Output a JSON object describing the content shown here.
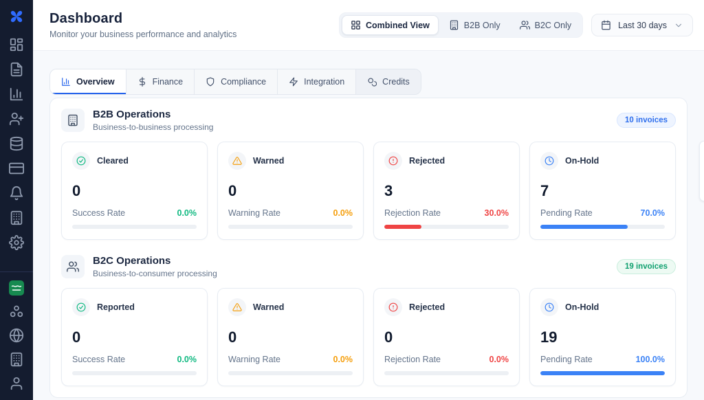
{
  "brand": {
    "logo_color": "#2f6bff",
    "flag_color": "#178a50"
  },
  "sidebar": {
    "top_icons": [
      "layout-dashboard",
      "file-text",
      "bar-chart",
      "user-plus",
      "database",
      "credit-card",
      "bell",
      "building",
      "settings"
    ],
    "bottom_icons": [
      "webhook",
      "globe",
      "building",
      "user"
    ]
  },
  "header": {
    "title": "Dashboard",
    "subtitle": "Monitor your business performance and analytics",
    "view_toggle": [
      {
        "label": "Combined View",
        "icon": "layout-grid",
        "active": true
      },
      {
        "label": "B2B Only",
        "icon": "building",
        "active": false
      },
      {
        "label": "B2C Only",
        "icon": "users",
        "active": false
      }
    ],
    "date_range": {
      "label": "Last 30 days",
      "icon": "calendar"
    }
  },
  "tabs": [
    {
      "label": "Overview",
      "icon": "bar-chart",
      "active": true,
      "icon_color": "#2563eb"
    },
    {
      "label": "Finance",
      "icon": "dollar",
      "active": false,
      "icon_color": "#44526b"
    },
    {
      "label": "Compliance",
      "icon": "shield",
      "active": false,
      "icon_color": "#44526b"
    },
    {
      "label": "Integration",
      "icon": "zap",
      "active": false,
      "icon_color": "#44526b"
    },
    {
      "label": "Credits",
      "icon": "coins",
      "active": false,
      "icon_color": "#44526b"
    }
  ],
  "sections": [
    {
      "id": "b2b",
      "icon": "building",
      "title": "B2B Operations",
      "subtitle": "Business-to-business processing",
      "badge": {
        "text": "10 invoices",
        "color": "#2f6fed",
        "bg": "#eef4ff",
        "border": "#d8e6ff"
      },
      "cards": [
        {
          "label": "Cleared",
          "icon": "check-circle",
          "color": "#10b981",
          "value": "0",
          "rate_label": "Success Rate",
          "rate": "0.0%",
          "pct": 0
        },
        {
          "label": "Warned",
          "icon": "alert-triangle",
          "color": "#f59e0b",
          "value": "0",
          "rate_label": "Warning Rate",
          "rate": "0.0%",
          "pct": 0
        },
        {
          "label": "Rejected",
          "icon": "alert-circle",
          "color": "#ef4444",
          "value": "3",
          "rate_label": "Rejection Rate",
          "rate": "30.0%",
          "pct": 30
        },
        {
          "label": "On-Hold",
          "icon": "clock",
          "color": "#3b82f6",
          "value": "7",
          "rate_label": "Pending Rate",
          "rate": "70.0%",
          "pct": 70
        }
      ]
    },
    {
      "id": "b2c",
      "icon": "users",
      "title": "B2C Operations",
      "subtitle": "Business-to-consumer processing",
      "badge": {
        "text": "19 invoices",
        "color": "#0e9f6e",
        "bg": "#edfaf3",
        "border": "#c9eedd"
      },
      "cards": [
        {
          "label": "Reported",
          "icon": "check-circle",
          "color": "#10b981",
          "value": "0",
          "rate_label": "Success Rate",
          "rate": "0.0%",
          "pct": 0
        },
        {
          "label": "Warned",
          "icon": "alert-triangle",
          "color": "#f59e0b",
          "value": "0",
          "rate_label": "Warning Rate",
          "rate": "0.0%",
          "pct": 0
        },
        {
          "label": "Rejected",
          "icon": "alert-circle",
          "color": "#ef4444",
          "value": "0",
          "rate_label": "Rejection Rate",
          "rate": "0.0%",
          "pct": 0
        },
        {
          "label": "On-Hold",
          "icon": "clock",
          "color": "#3b82f6",
          "value": "19",
          "rate_label": "Pending Rate",
          "rate": "100.0%",
          "pct": 100
        }
      ]
    }
  ]
}
